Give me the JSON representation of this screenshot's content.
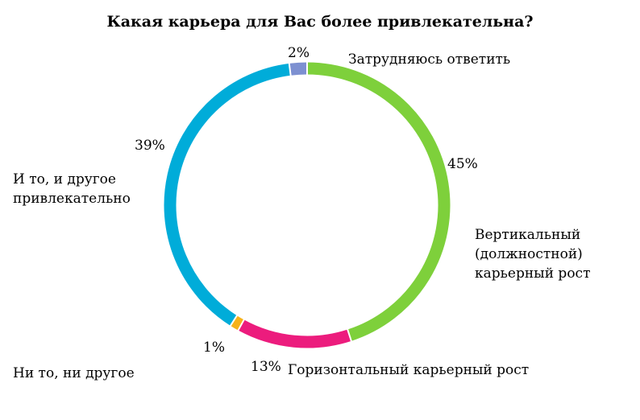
{
  "chart_data": {
    "type": "pie",
    "title": "Какая карьера для Вас более привлекательна?",
    "hole": "donut",
    "legend": "none",
    "slices": [
      {
        "label": "Вертикальный (должностной) карьерный рост",
        "value": 45,
        "value_label": "45%",
        "color": "#7ed03b"
      },
      {
        "label": "Горизонтальный карьерный рост",
        "value": 13,
        "value_label": "13%",
        "color": "#ec1c7d"
      },
      {
        "label": "Ни то, ни другое",
        "value": 1,
        "value_label": "1%",
        "color": "#f6b21b"
      },
      {
        "label": "И то, и другое привлекательно",
        "value": 39,
        "value_label": "39%",
        "color": "#00acd9"
      },
      {
        "label": "Затрудняюсь ответить",
        "value": 2,
        "value_label": "2%",
        "color": "#7d90d1"
      }
    ]
  }
}
